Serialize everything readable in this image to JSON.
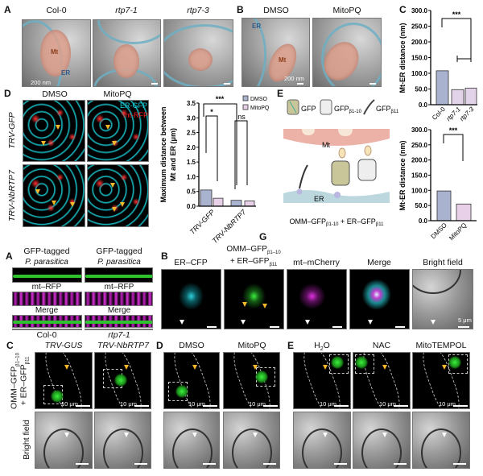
{
  "top": {
    "panelA": {
      "label": "A",
      "titles": [
        "Col-0",
        "rtp7-1",
        "rtp7-3"
      ],
      "mt_label": "Mt",
      "er_label": "ER",
      "scale": "200 nm"
    },
    "panelB": {
      "label": "B",
      "titles": [
        "DMSO",
        "MitoPQ"
      ],
      "mt_label": "Mt",
      "er_label": "ER",
      "scale": "200 nm"
    },
    "panelC": {
      "label": "C"
    },
    "panelD": {
      "label": "D",
      "titles": [
        "DMSO",
        "MitoPQ"
      ],
      "rows": [
        "TRV-GFP",
        "TRV-NbRTP7"
      ],
      "channel_er": "ER-GFP",
      "channel_mt": "mt-RFP",
      "channel_er_color": "#19d6e0",
      "channel_mt_color": "#ff2020"
    },
    "panelE": {
      "label": "E",
      "gfp": "GFP",
      "gfp1": "GFP",
      "gfp1_sub": "β1-10",
      "gfp2": "GFP",
      "gfp2_sub": "β11",
      "mt": "Mt",
      "er": "ER",
      "caption_a": "OMM–GFP",
      "caption_a_sub": "β1-10",
      "caption_plus": " + ER–GFP",
      "caption_b_sub": "β11"
    },
    "panelG": {
      "label": "G"
    }
  },
  "chart_data": [
    {
      "type": "bar",
      "ylabel": "Mt-ER distance (nm)",
      "categories": [
        "Col-0",
        "rtp7-1",
        "rtp7-3"
      ],
      "values": [
        108,
        48,
        53
      ],
      "ylim": [
        0,
        300
      ],
      "yticks": [
        "0.0",
        "50.0",
        "100.0",
        "150.0",
        "200.0",
        "250.0",
        "300.0"
      ],
      "colors": [
        "#a9b3d0",
        "#e3d3e8",
        "#e3d3e8"
      ],
      "significance": "***"
    },
    {
      "type": "bar",
      "ylabel": "Mt-ER distance (nm)",
      "categories": [
        "DMSO",
        "MitoPQ"
      ],
      "values": [
        98,
        55
      ],
      "ylim": [
        0,
        300
      ],
      "yticks": [
        "0.0",
        "50.0",
        "100.0",
        "150.0",
        "200.0",
        "250.0",
        "300.0"
      ],
      "colors": [
        "#a9b3d0",
        "#e8d0e8"
      ],
      "significance": "***"
    },
    {
      "type": "bar",
      "ylabel": [
        "Maximum distance between",
        "Mt and ER (μm)"
      ],
      "categories": [
        "TRV-GFP",
        "TRV-NbRTP7"
      ],
      "series": [
        {
          "name": "DMSO",
          "values": [
            0.55,
            0.2
          ],
          "color": "#a9b3d0"
        },
        {
          "name": "MitoPQ",
          "values": [
            0.27,
            0.18
          ],
          "color": "#e8d0e8"
        }
      ],
      "ylim": [
        0,
        3.5
      ],
      "yticks": [
        "0.0",
        "0.5",
        "1.0",
        "1.5",
        "2.0",
        "2.5",
        "3.0",
        "3.5"
      ],
      "significance": {
        "overall": "***",
        "trv_gfp": "*",
        "trv_nbrtp7": "ns"
      },
      "legend": "top-right"
    }
  ],
  "bottom": {
    "panelA": {
      "label": "A",
      "header_line1": "GFP-tagged",
      "header_line2": "P. parasitica",
      "row2": "mt–RFP",
      "row3": "Merge",
      "groups": [
        "Col-0",
        "rtp7-1"
      ]
    },
    "panelB": {
      "label": "B",
      "titles": [
        "ER–CFP",
        "mt–mCherry",
        "Merge",
        "Bright field"
      ],
      "omm_line1": "OMM–GFP",
      "omm_sub1": "β1–10",
      "omm_line2": "+ ER–GFP",
      "omm_sub2": "β11",
      "scale": "5 μm"
    },
    "panelC": {
      "label": "C",
      "titles": [
        "TRV-GUS",
        "TRV-NbRTP7"
      ],
      "row1_line1": "OMM–GFP",
      "row1_sub1": "β1–10",
      "row1_line2": "+ ER–GFP",
      "row1_sub2": "β11",
      "row2": "Bright field",
      "scale": "10 μm"
    },
    "panelD": {
      "label": "D",
      "titles": [
        "DMSO",
        "MitoPQ"
      ],
      "scale": "10 μm"
    },
    "panelE": {
      "label": "E",
      "titles": [
        "H",
        "2",
        "O",
        "NAC",
        "MitoTEMPOL"
      ],
      "scale": "10 μm"
    }
  }
}
